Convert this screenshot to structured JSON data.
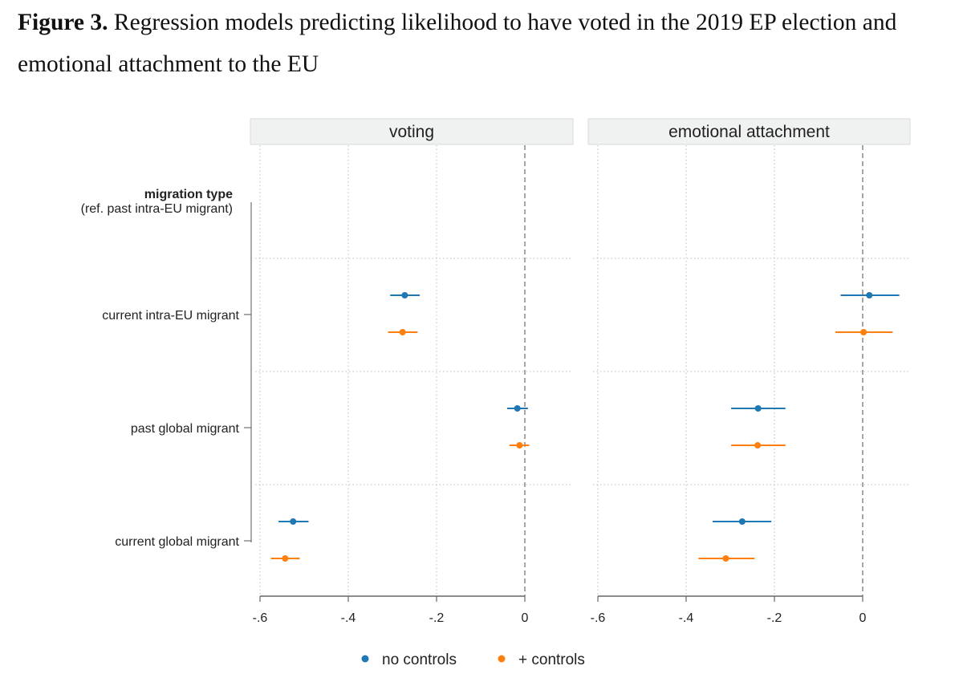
{
  "figure": {
    "label": "Figure 3.",
    "caption": "Regression models predicting likelihood to have voted in the 2019 EP election and emotional attachment to the EU"
  },
  "chart_data": {
    "type": "coefficient-plot",
    "y_group_title": "migration type",
    "y_group_subtitle": "(ref. past intra-EU migrant)",
    "categories": [
      "current intra-EU migrant",
      "past global migrant",
      "current global migrant"
    ],
    "xlim": [
      -0.6,
      0.0
    ],
    "x_ticks": [
      -0.6,
      -0.4,
      -0.2,
      0.0
    ],
    "x_tick_labels": [
      "-.6",
      "-.4",
      "-.2",
      "0"
    ],
    "reference_line": 0,
    "legend": {
      "position": "bottom",
      "items": [
        {
          "name": "no controls",
          "color": "#1f77b4"
        },
        {
          "name": "+ controls",
          "color": "#ff7f0e"
        }
      ]
    },
    "panels": [
      {
        "title": "voting",
        "series": [
          {
            "name": "no controls",
            "estimates": [
              -0.272,
              -0.017,
              -0.525
            ],
            "ci_low": [
              -0.305,
              -0.04,
              -0.558
            ],
            "ci_high": [
              -0.238,
              0.007,
              -0.49
            ]
          },
          {
            "name": "+ controls",
            "estimates": [
              -0.277,
              -0.012,
              -0.543
            ],
            "ci_low": [
              -0.31,
              -0.035,
              -0.575
            ],
            "ci_high": [
              -0.243,
              0.01,
              -0.51
            ]
          }
        ]
      },
      {
        "title": "emotional attachment",
        "series": [
          {
            "name": "no controls",
            "estimates": [
              0.015,
              -0.237,
              -0.273
            ],
            "ci_low": [
              -0.05,
              -0.298,
              -0.34
            ],
            "ci_high": [
              0.083,
              -0.175,
              -0.207
            ]
          },
          {
            "name": "+ controls",
            "estimates": [
              0.002,
              -0.238,
              -0.31
            ],
            "ci_low": [
              -0.062,
              -0.298,
              -0.372
            ],
            "ci_high": [
              0.068,
              -0.175,
              -0.245
            ]
          }
        ]
      }
    ]
  }
}
